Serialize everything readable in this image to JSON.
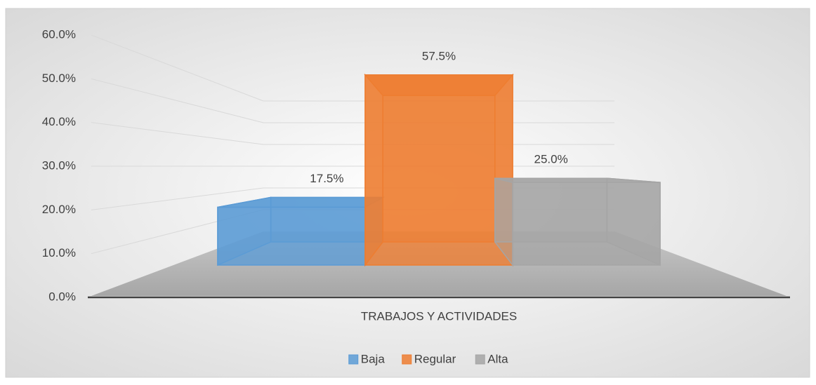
{
  "chart_data": {
    "type": "bar3d",
    "categories": [
      "TRABAJOS Y ACTIVIDADES"
    ],
    "series": [
      {
        "name": "Baja",
        "color": "#5b9bd5",
        "values": [
          17.5
        ],
        "value_labels": [
          "17.5%"
        ]
      },
      {
        "name": "Regular",
        "color": "#ed7d31",
        "values": [
          57.5
        ],
        "value_labels": [
          "57.5%"
        ]
      },
      {
        "name": "Alta",
        "color": "#a5a5a5",
        "values": [
          25.0
        ],
        "value_labels": [
          "25.0%"
        ]
      }
    ],
    "ylim": [
      0,
      60
    ],
    "yticks": [
      {
        "value": 0,
        "label": "0.0%"
      },
      {
        "value": 10,
        "label": "10.0%"
      },
      {
        "value": 20,
        "label": "20.0%"
      },
      {
        "value": 30,
        "label": "30.0%"
      },
      {
        "value": 40,
        "label": "40.0%"
      },
      {
        "value": 50,
        "label": "50.0%"
      },
      {
        "value": 60,
        "label": "60.0%"
      }
    ],
    "grid": true,
    "legend": "bottom"
  }
}
